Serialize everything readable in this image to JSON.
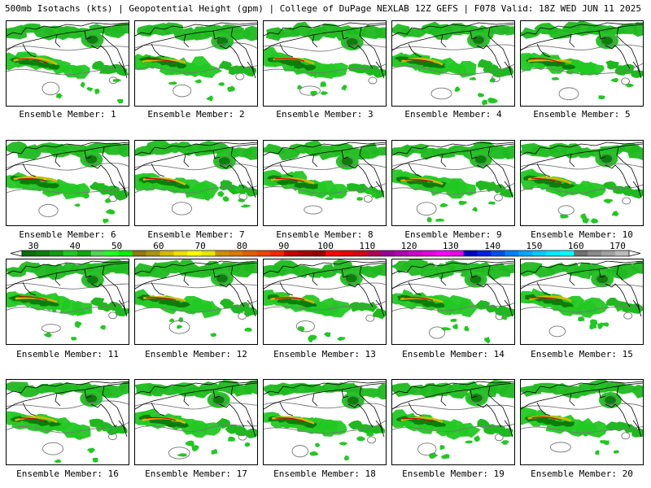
{
  "header": {
    "left": "500mb Isotachs (kts) | Geopotential Height (gpm) | College of DuPage NEXLAB",
    "right": "12Z GEFS | F078 Valid: 18Z WED JUN 11 2025"
  },
  "colorbar": {
    "labels": [
      "30",
      "40",
      "50",
      "60",
      "70",
      "80",
      "90",
      "100",
      "110",
      "120",
      "130",
      "140",
      "150",
      "160",
      "170"
    ],
    "colors": [
      "#0b6e0b",
      "#0c7d0c",
      "#119b11",
      "#22c822",
      "#0ea70e",
      "#53d553",
      "#22ff22",
      "#00ee00",
      "#8e7a10",
      "#a99410",
      "#d4b800",
      "#eedd00",
      "#ffff00",
      "#e6e600",
      "#cc8f00",
      "#d87a00",
      "#e06000",
      "#e84800",
      "#f02800",
      "#c40000",
      "#aa0000",
      "#960000",
      "#ff0000",
      "#e80000",
      "#d0001a",
      "#b40050",
      "#960096",
      "#b000b0",
      "#cc00cc",
      "#e000e0",
      "#ff00ff",
      "#e800e8",
      "#0000c0",
      "#0022dd",
      "#0050ee",
      "#0080ff",
      "#00a8ff",
      "#00c8ff",
      "#00e8ff",
      "#00ffff",
      "#707070",
      "#8a8a8a",
      "#a2a2a2",
      "#bcbcbc"
    ]
  },
  "panels": [
    {
      "caption": "Ensemble Member: 1"
    },
    {
      "caption": "Ensemble Member: 2"
    },
    {
      "caption": "Ensemble Member: 3"
    },
    {
      "caption": "Ensemble Member: 4"
    },
    {
      "caption": "Ensemble Member: 5"
    },
    {
      "caption": "Ensemble Member: 6"
    },
    {
      "caption": "Ensemble Member: 7"
    },
    {
      "caption": "Ensemble Member: 8"
    },
    {
      "caption": "Ensemble Member: 9"
    },
    {
      "caption": "Ensemble Member: 10"
    },
    {
      "caption": "Ensemble Member: 11"
    },
    {
      "caption": "Ensemble Member: 12"
    },
    {
      "caption": "Ensemble Member: 13"
    },
    {
      "caption": "Ensemble Member: 14"
    },
    {
      "caption": "Ensemble Member: 15"
    },
    {
      "caption": "Ensemble Member: 16"
    },
    {
      "caption": "Ensemble Member: 17"
    },
    {
      "caption": "Ensemble Member: 18"
    },
    {
      "caption": "Ensemble Member: 19"
    },
    {
      "caption": "Ensemble Member: 20"
    }
  ]
}
